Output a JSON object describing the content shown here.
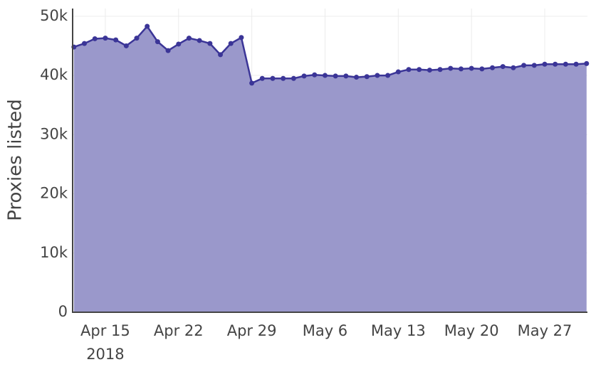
{
  "chart_data": {
    "type": "area",
    "y_axis_label": "Proxies listed",
    "x": [
      "2018-04-12",
      "2018-04-13",
      "2018-04-14",
      "2018-04-15",
      "2018-04-16",
      "2018-04-17",
      "2018-04-18",
      "2018-04-19",
      "2018-04-20",
      "2018-04-21",
      "2018-04-22",
      "2018-04-23",
      "2018-04-24",
      "2018-04-25",
      "2018-04-26",
      "2018-04-27",
      "2018-04-28",
      "2018-04-29",
      "2018-04-30",
      "2018-05-01",
      "2018-05-02",
      "2018-05-03",
      "2018-05-04",
      "2018-05-05",
      "2018-05-06",
      "2018-05-07",
      "2018-05-08",
      "2018-05-09",
      "2018-05-10",
      "2018-05-11",
      "2018-05-12",
      "2018-05-13",
      "2018-05-14",
      "2018-05-15",
      "2018-05-16",
      "2018-05-17",
      "2018-05-18",
      "2018-05-19",
      "2018-05-20",
      "2018-05-21",
      "2018-05-22",
      "2018-05-23",
      "2018-05-24",
      "2018-05-25",
      "2018-05-26",
      "2018-05-27",
      "2018-05-28",
      "2018-05-29",
      "2018-05-30",
      "2018-05-31"
    ],
    "values": [
      44800,
      45400,
      46200,
      46300,
      46000,
      45000,
      46300,
      48300,
      45700,
      44200,
      45300,
      46300,
      45900,
      45400,
      43500,
      45400,
      46400,
      38700,
      39500,
      39500,
      39500,
      39500,
      39900,
      40100,
      40000,
      39900,
      39900,
      39700,
      39800,
      40000,
      40000,
      40600,
      41000,
      41000,
      40900,
      41000,
      41200,
      41100,
      41200,
      41100,
      41300,
      41500,
      41300,
      41700,
      41700,
      41900,
      41900,
      41900,
      41900,
      42000
    ],
    "color": "#3b3597",
    "fill_color": "#9a98cb",
    "xlim": [
      "2018-04-11T21:00",
      "2018-05-31T02:00"
    ],
    "xticks": [
      {
        "value": "2018-04-15",
        "label": "Apr 15"
      },
      {
        "value": "2018-04-22",
        "label": "Apr 22"
      },
      {
        "value": "2018-04-29",
        "label": "Apr 29"
      },
      {
        "value": "2018-05-06",
        "label": "May 6"
      },
      {
        "value": "2018-05-13",
        "label": "May 13"
      },
      {
        "value": "2018-05-20",
        "label": "May 20"
      },
      {
        "value": "2018-05-27",
        "label": "May 27"
      }
    ],
    "x_year_label": "2018",
    "ylim": [
      0,
      51300
    ],
    "yticks": [
      0,
      {
        "value": 10000,
        "label": "10k"
      },
      {
        "value": 20000,
        "label": "20k"
      },
      {
        "value": 30000,
        "label": "30k"
      },
      {
        "value": 40000,
        "label": "40k"
      },
      {
        "value": 50000,
        "label": "50k"
      }
    ],
    "grid": true
  }
}
